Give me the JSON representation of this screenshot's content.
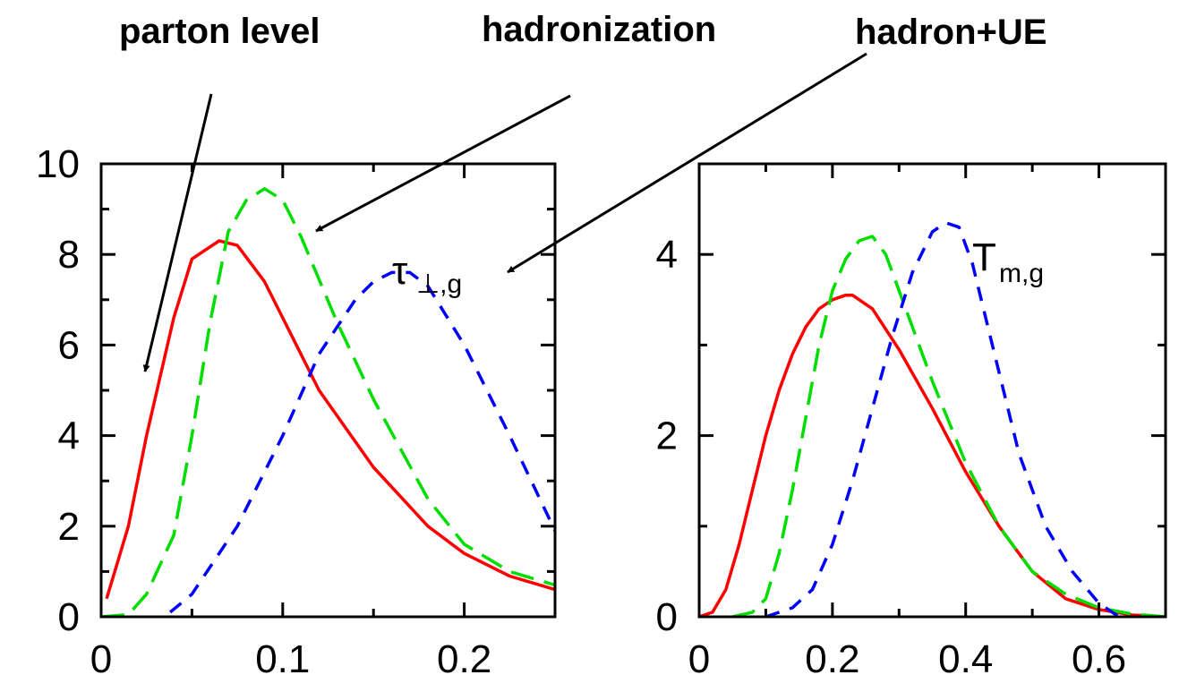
{
  "annotations": {
    "parton": "parton level",
    "hadronization": "hadronization",
    "hadron_ue": "hadron+UE"
  },
  "colors": {
    "parton": "#ff0000",
    "hadronization": "#00dd00",
    "hadron_ue": "#0000ff",
    "axis": "#000000"
  },
  "chart_data": [
    {
      "type": "line",
      "observable_main": "τ",
      "observable_sub": "⊥,g",
      "xlim": [
        0,
        0.25
      ],
      "ylim": [
        0,
        10
      ],
      "xticks": [
        0,
        0.1,
        0.2
      ],
      "xtick_labels": [
        "0",
        "0.1",
        "0.2"
      ],
      "xticks_minor": [
        0.05,
        0.15,
        0.25
      ],
      "yticks": [
        0,
        2,
        4,
        6,
        8,
        10
      ],
      "ytick_labels": [
        "0",
        "2",
        "4",
        "6",
        "8",
        "10"
      ],
      "yticks_minor": [
        1,
        3,
        5,
        7,
        9
      ],
      "series": [
        {
          "key": "parton",
          "style": "solid",
          "x": [
            0.003,
            0.015,
            0.025,
            0.04,
            0.05,
            0.065,
            0.075,
            0.09,
            0.1,
            0.12,
            0.15,
            0.18,
            0.2,
            0.225,
            0.25
          ],
          "y": [
            0.4,
            2.0,
            4.0,
            6.6,
            7.9,
            8.3,
            8.2,
            7.4,
            6.6,
            5.0,
            3.3,
            2.0,
            1.4,
            0.9,
            0.6
          ]
        },
        {
          "key": "hadronization",
          "style": "dashed",
          "x": [
            0.0,
            0.015,
            0.025,
            0.04,
            0.05,
            0.06,
            0.07,
            0.08,
            0.09,
            0.1,
            0.11,
            0.13,
            0.15,
            0.18,
            0.2,
            0.225,
            0.25
          ],
          "y": [
            0.0,
            0.05,
            0.5,
            1.8,
            4.0,
            6.5,
            8.5,
            9.2,
            9.45,
            9.2,
            8.4,
            6.5,
            4.8,
            2.6,
            1.6,
            1.0,
            0.7
          ]
        },
        {
          "key": "hadron_ue",
          "style": "dashed",
          "x": [
            0.038,
            0.05,
            0.075,
            0.1,
            0.12,
            0.14,
            0.15,
            0.16,
            0.17,
            0.18,
            0.2,
            0.225,
            0.25
          ],
          "y": [
            0.1,
            0.5,
            2.0,
            4.0,
            5.8,
            7.0,
            7.4,
            7.6,
            7.6,
            7.3,
            6.0,
            4.0,
            1.9
          ]
        }
      ]
    },
    {
      "type": "line",
      "observable_main": "T",
      "observable_sub": "m,g",
      "xlim": [
        0,
        0.7
      ],
      "ylim": [
        0,
        5
      ],
      "xticks": [
        0,
        0.2,
        0.4,
        0.6
      ],
      "xtick_labels": [
        "0",
        "0.2",
        "0.4",
        "0.6"
      ],
      "xticks_minor": [
        0.1,
        0.3,
        0.5
      ],
      "yticks": [
        0,
        2,
        4
      ],
      "ytick_labels": [
        "0",
        "2",
        "4"
      ],
      "yticks_minor": [
        1,
        3
      ],
      "series": [
        {
          "key": "parton",
          "style": "solid",
          "x": [
            0.0,
            0.02,
            0.04,
            0.06,
            0.08,
            0.1,
            0.12,
            0.14,
            0.16,
            0.18,
            0.2,
            0.22,
            0.23,
            0.26,
            0.3,
            0.35,
            0.4,
            0.45,
            0.5,
            0.55,
            0.6,
            0.65,
            0.7
          ],
          "y": [
            0.0,
            0.05,
            0.3,
            0.8,
            1.4,
            2.0,
            2.5,
            2.9,
            3.2,
            3.4,
            3.5,
            3.55,
            3.55,
            3.4,
            2.95,
            2.3,
            1.6,
            1.0,
            0.5,
            0.2,
            0.08,
            0.02,
            0.0
          ]
        },
        {
          "key": "hadronization",
          "style": "dashed",
          "x": [
            0.05,
            0.08,
            0.1,
            0.12,
            0.14,
            0.16,
            0.18,
            0.2,
            0.22,
            0.24,
            0.26,
            0.28,
            0.3,
            0.35,
            0.4,
            0.45,
            0.5,
            0.55,
            0.6,
            0.65,
            0.7
          ],
          "y": [
            0.0,
            0.05,
            0.2,
            0.7,
            1.4,
            2.2,
            3.0,
            3.6,
            3.95,
            4.15,
            4.2,
            4.0,
            3.6,
            2.6,
            1.7,
            1.0,
            0.5,
            0.25,
            0.1,
            0.03,
            0.0
          ]
        },
        {
          "key": "hadron_ue",
          "style": "dashed",
          "x": [
            0.1,
            0.14,
            0.17,
            0.2,
            0.23,
            0.26,
            0.29,
            0.32,
            0.35,
            0.37,
            0.39,
            0.41,
            0.44,
            0.48,
            0.52,
            0.56,
            0.6,
            0.63
          ],
          "y": [
            0.0,
            0.1,
            0.3,
            0.8,
            1.5,
            2.3,
            3.1,
            3.8,
            4.25,
            4.35,
            4.3,
            3.9,
            3.0,
            1.8,
            1.0,
            0.5,
            0.15,
            0.0
          ]
        }
      ]
    }
  ]
}
